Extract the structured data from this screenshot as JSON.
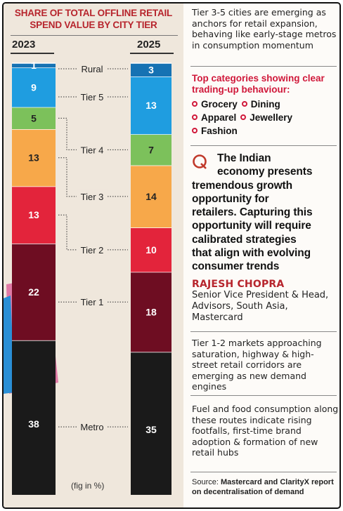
{
  "chart_data": {
    "type": "bar",
    "stacked": true,
    "title": "SHARE OF TOTAL OFFLINE RETAIL SPEND VALUE BY CITY TIER",
    "categories": [
      "2023",
      "2025"
    ],
    "note": "(fig in %)",
    "series": [
      {
        "name": "Metro",
        "values": [
          38,
          35
        ],
        "color": "#1a1a1a"
      },
      {
        "name": "Tier 1",
        "values": [
          22,
          18
        ],
        "color": "#6e0d22"
      },
      {
        "name": "Tier 2",
        "values": [
          13,
          10
        ],
        "color": "#e3243b"
      },
      {
        "name": "Tier 3",
        "values": [
          13,
          14
        ],
        "color": "#f7a84a"
      },
      {
        "name": "Tier 4",
        "values": [
          5,
          7
        ],
        "color": "#7cc15b"
      },
      {
        "name": "Tier 5",
        "values": [
          9,
          13
        ],
        "color": "#1f9de0"
      },
      {
        "name": "Rural",
        "values": [
          1,
          3
        ],
        "color": "#1672b3"
      }
    ]
  },
  "sidebar": {
    "para1": "Tier 3-5 cities are emerging as anchors for retail expansion, behaving like early-stage metros in consumption momentum",
    "categories_heading": "Top categories showing clear trading-up behaviour:",
    "categories": [
      "Grocery",
      "Dining",
      "Apparel",
      "Jewellery",
      "Fashion"
    ],
    "quote_lines": [
      "The Indian",
      "economy presents",
      "tremendous growth",
      "opportunity for",
      "retailers. Capturing this",
      "opportunity will require",
      "calibrated strategies",
      "that align with evolving",
      "consumer trends"
    ],
    "quote_author": "RAJESH CHOPRA",
    "quote_role": "Senior Vice President & Head, Advisors, South Asia, Mastercard",
    "para3": "Tier 1-2 markets approaching saturation, highway & high-street retail corridors are emerging as new demand engines",
    "para4": "Fuel and food consumption along these routes indicate rising footfalls, first-time brand adoption & formation of new retail hubs",
    "source_prefix": "Source: ",
    "source_text": "Mastercard and ClarityX report on decentralisation of demand"
  },
  "colors": {
    "accent": "#b7252d",
    "category_red": "#d0183a",
    "panel_bg": "#efe7dc"
  }
}
